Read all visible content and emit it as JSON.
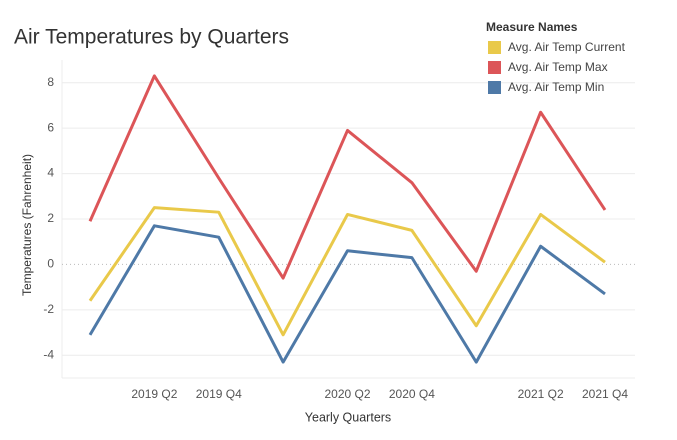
{
  "chart_data": {
    "type": "line",
    "title": "Air Temperatures by Quarters",
    "x_label": "Yearly Quarters",
    "y_label": "Temperatures (Fahrenheit)",
    "legend_title": "Measure Names",
    "legend": "top-right",
    "categories": [
      null,
      "2019 Q2",
      "2019 Q4",
      null,
      "2020 Q2",
      "2020 Q4",
      null,
      "2021 Q2",
      "2021 Q4"
    ],
    "series": [
      {
        "name": "Avg. Air Temp Current",
        "color": "#e9c94a",
        "values": [
          -1.6,
          2.5,
          2.3,
          -3.1,
          2.2,
          1.5,
          -2.7,
          2.2,
          0.1
        ]
      },
      {
        "name": "Avg. Air Temp Max",
        "color": "#dc5558",
        "values": [
          1.9,
          8.3,
          3.8,
          -0.6,
          5.9,
          3.6,
          -0.3,
          6.7,
          2.4
        ]
      },
      {
        "name": "Avg. Air Temp Min",
        "color": "#4e79a7",
        "values": [
          -3.1,
          1.7,
          1.2,
          -4.3,
          0.6,
          0.3,
          -4.3,
          0.8,
          -1.3
        ]
      }
    ],
    "ylim": [
      -5,
      9
    ],
    "yticks": [
      -4,
      -2,
      0,
      2,
      4,
      6,
      8
    ],
    "grid": true
  }
}
